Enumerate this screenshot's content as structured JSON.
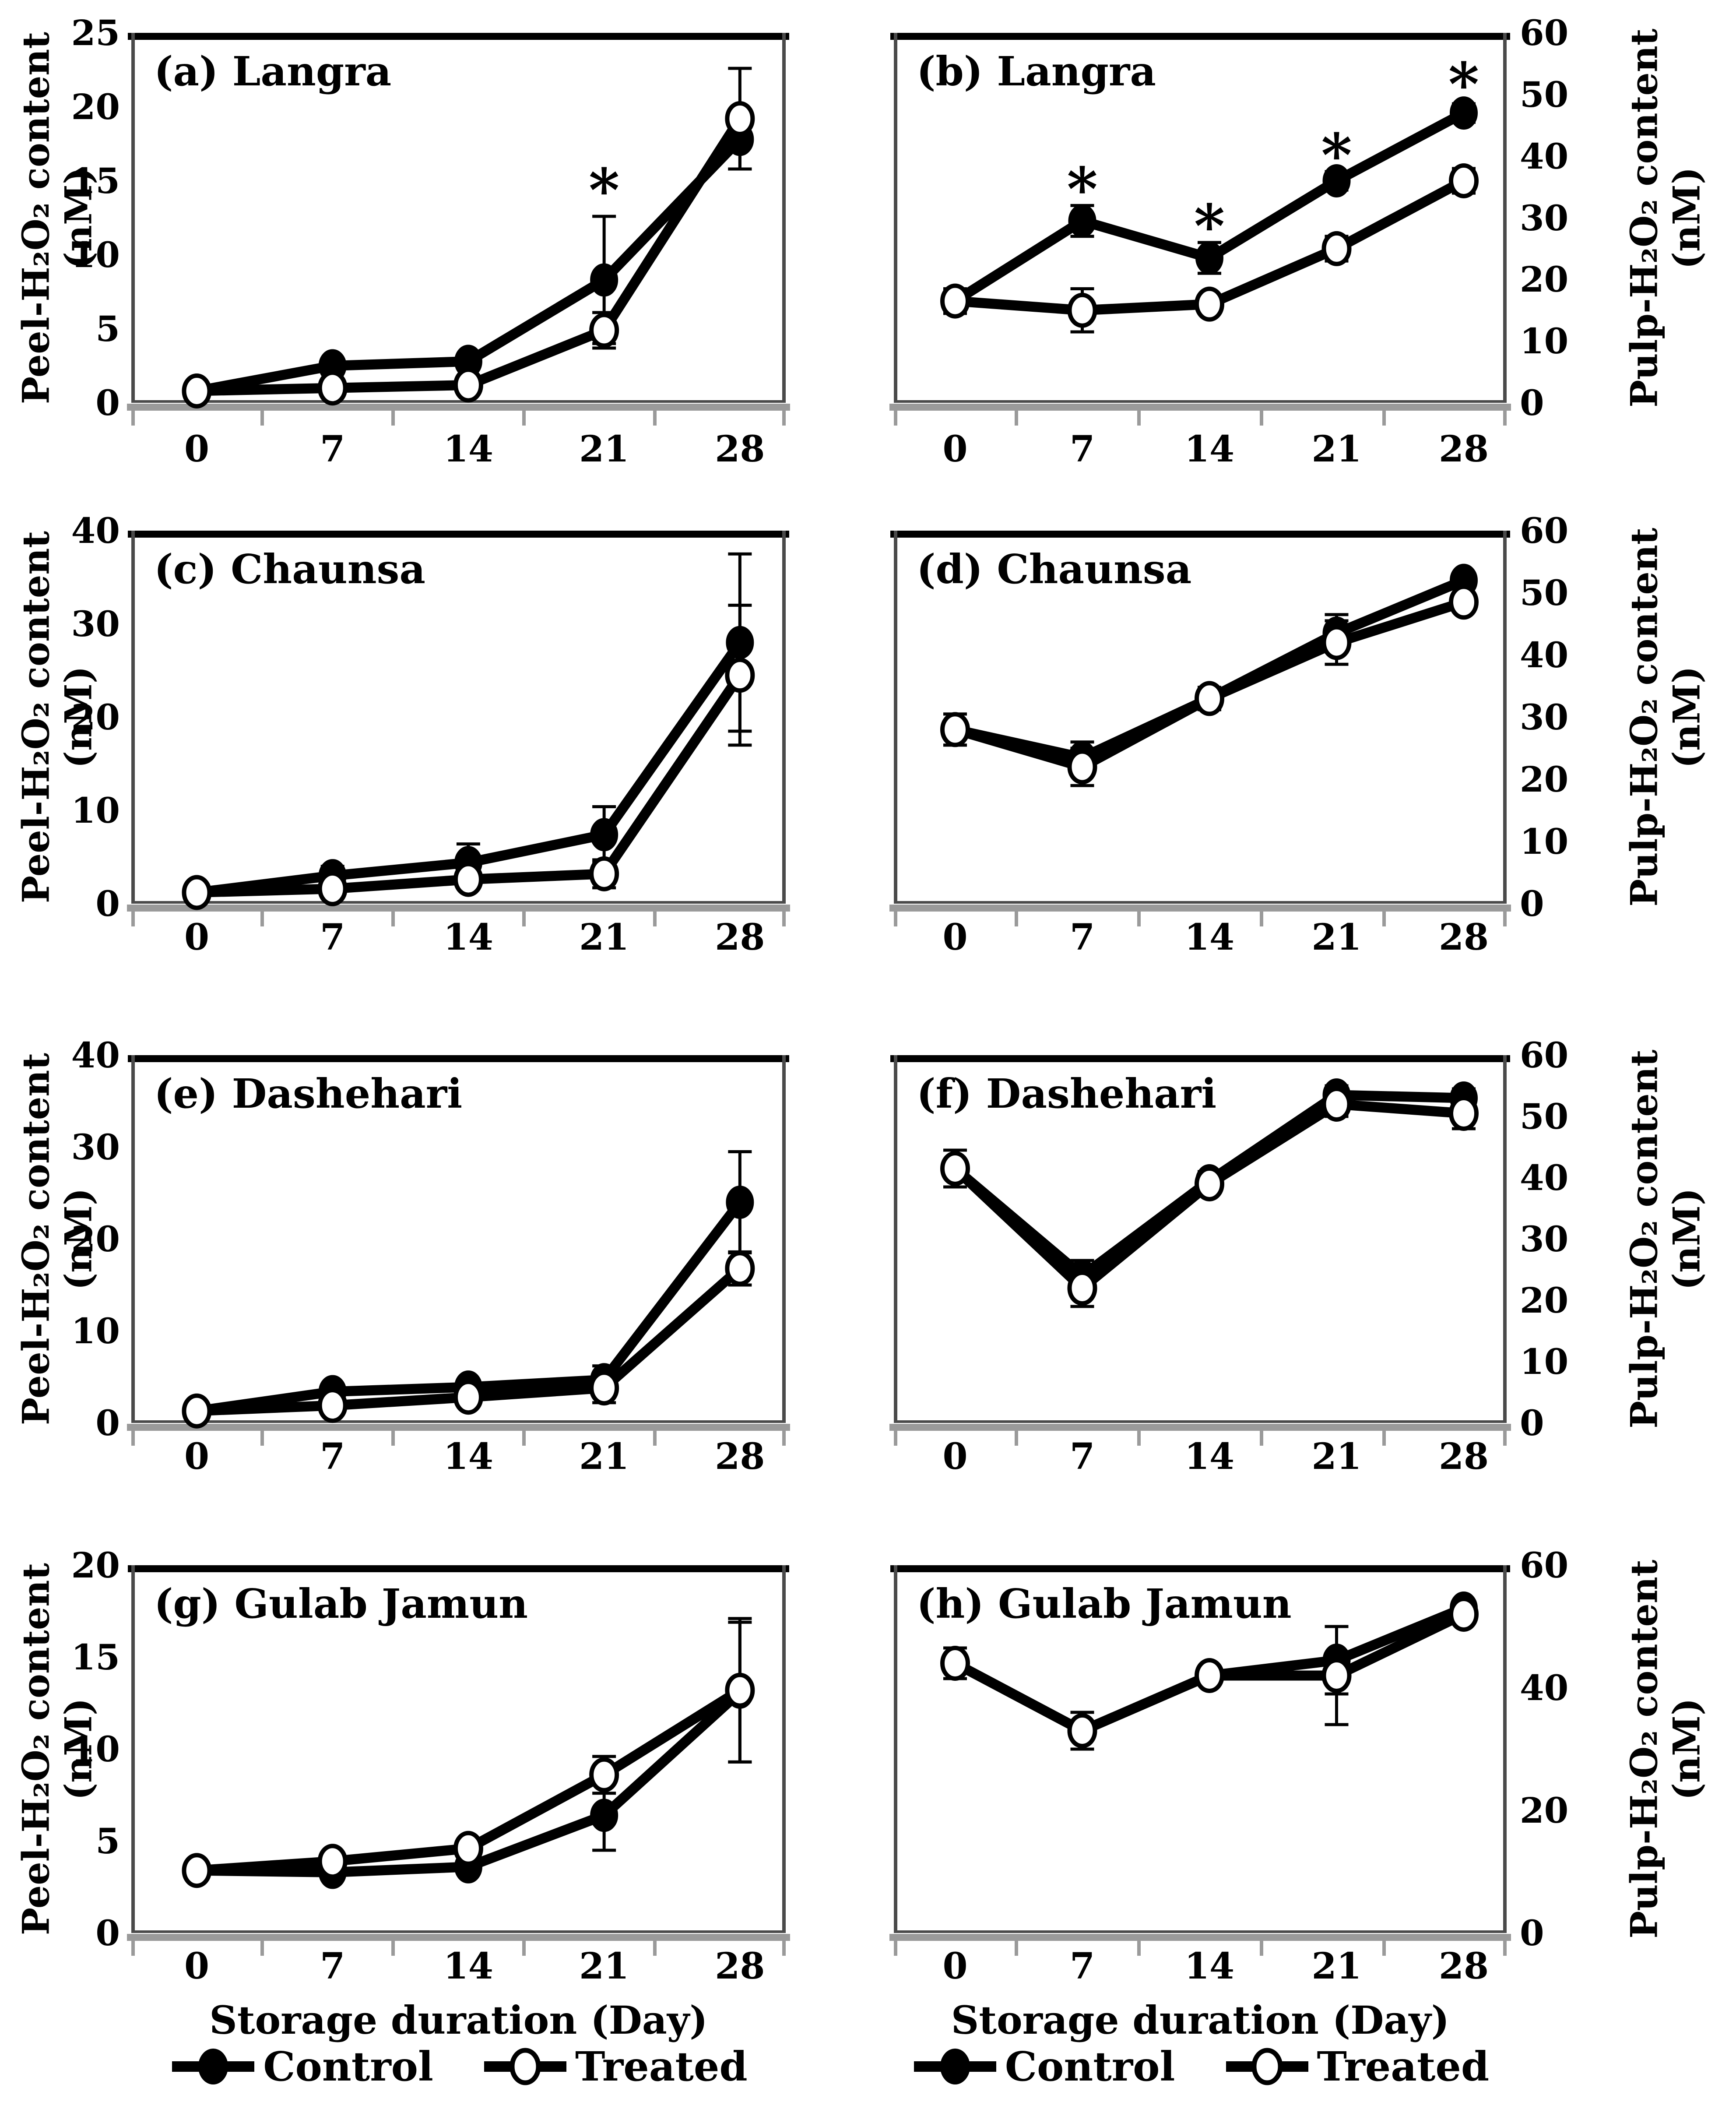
{
  "figure": {
    "x_label": "Storage duration (Day)",
    "x_ticks": [
      "0",
      "7",
      "14",
      "21",
      "28"
    ],
    "x_values": [
      0,
      7,
      14,
      21,
      28
    ],
    "legend": {
      "control": "Control",
      "treated": "Treated"
    },
    "colors": {
      "line": "#000000",
      "control_marker_fill": "#000000",
      "treated_marker_fill": "#ffffff",
      "frame_top": "#000000",
      "frame_side": "#4a4a4a",
      "axis_shadow_gray": "#9a9a9a",
      "background": "#ffffff"
    }
  },
  "chart_data": [
    {
      "id": "a",
      "type": "line",
      "title": "(a) Langra",
      "ylabel_line1": "Peel-H₂O₂ content",
      "ylabel_line2": "(nM)",
      "y_axis_side": "left",
      "ylim": [
        0,
        25
      ],
      "yticks": [
        0,
        5,
        10,
        15,
        20,
        25
      ],
      "x": [
        0,
        7,
        14,
        21,
        28
      ],
      "grid": false,
      "series": [
        {
          "name": "Control",
          "marker": "filled",
          "values": [
            0.8,
            2.5,
            2.8,
            8.3,
            17.8
          ],
          "errors": [
            0.3,
            0.4,
            0.4,
            4.3,
            2.0
          ]
        },
        {
          "name": "Treated",
          "marker": "open",
          "values": [
            0.8,
            1.0,
            1.2,
            4.9,
            19.2
          ],
          "errors": [
            0.3,
            0.3,
            0.3,
            1.2,
            3.4
          ]
        }
      ],
      "significance": [
        {
          "day": 21,
          "y": 14.3
        }
      ]
    },
    {
      "id": "b",
      "type": "line",
      "title": "(b) Langra",
      "ylabel_line1": "Pulp-H₂O₂ content",
      "ylabel_line2": "(nM)",
      "y_axis_side": "right",
      "ylim": [
        0,
        60
      ],
      "yticks": [
        0,
        10,
        20,
        30,
        40,
        50,
        60
      ],
      "x": [
        0,
        7,
        14,
        21,
        28
      ],
      "grid": false,
      "series": [
        {
          "name": "Control",
          "marker": "filled",
          "values": [
            16.5,
            29.5,
            23.5,
            36.0,
            47.0
          ],
          "errors": [
            2.0,
            2.5,
            2.5,
            1.5,
            1.5
          ]
        },
        {
          "name": "Treated",
          "marker": "open",
          "values": [
            16.5,
            15.0,
            16.0,
            25.0,
            36.0
          ],
          "errors": [
            2.0,
            3.5,
            1.5,
            2.0,
            2.0
          ]
        }
      ],
      "significance": [
        {
          "day": 7,
          "y": 34.5
        },
        {
          "day": 14,
          "y": 28.5
        },
        {
          "day": 21,
          "y": 40.0
        },
        {
          "day": 28,
          "y": 51.5
        }
      ]
    },
    {
      "id": "c",
      "type": "line",
      "title": "(c) Chaunsa",
      "ylabel_line1": "Peel-H₂O₂ content",
      "ylabel_line2": "(nM)",
      "y_axis_side": "left",
      "ylim": [
        0,
        40
      ],
      "yticks": [
        0,
        10,
        20,
        30,
        40
      ],
      "x": [
        0,
        7,
        14,
        21,
        28
      ],
      "grid": false,
      "series": [
        {
          "name": "Control",
          "marker": "filled",
          "values": [
            1.2,
            3.0,
            4.4,
            7.4,
            28.0
          ],
          "errors": [
            0.5,
            1.0,
            2.0,
            3.0,
            9.5
          ]
        },
        {
          "name": "Treated",
          "marker": "open",
          "values": [
            1.2,
            1.6,
            2.6,
            3.2,
            24.5
          ],
          "errors": [
            0.5,
            0.5,
            0.8,
            1.5,
            7.5
          ]
        }
      ],
      "significance": []
    },
    {
      "id": "d",
      "type": "line",
      "title": "(d) Chaunsa",
      "ylabel_line1": "Pulp-H₂O₂ content",
      "ylabel_line2": "(nM)",
      "y_axis_side": "right",
      "ylim": [
        0,
        60
      ],
      "yticks": [
        0,
        10,
        20,
        30,
        40,
        50,
        60
      ],
      "x": [
        0,
        7,
        14,
        21,
        28
      ],
      "grid": false,
      "series": [
        {
          "name": "Control",
          "marker": "filled",
          "values": [
            28.0,
            23.5,
            33.0,
            43.5,
            52.0
          ],
          "errors": [
            2.5,
            2.5,
            1.5,
            3.0,
            1.0
          ]
        },
        {
          "name": "Treated",
          "marker": "open",
          "values": [
            28.0,
            22.0,
            33.0,
            42.0,
            48.5
          ],
          "errors": [
            2.5,
            3.0,
            1.8,
            3.5,
            1.5
          ]
        }
      ],
      "significance": []
    },
    {
      "id": "e",
      "type": "line",
      "title": "(e) Dashehari",
      "ylabel_line1": "Peel-H₂O₂ content",
      "ylabel_line2": "(nM)",
      "y_axis_side": "left",
      "ylim": [
        0,
        40
      ],
      "yticks": [
        0,
        10,
        20,
        30,
        40
      ],
      "x": [
        0,
        7,
        14,
        21,
        28
      ],
      "grid": false,
      "series": [
        {
          "name": "Control",
          "marker": "filled",
          "values": [
            1.3,
            3.4,
            3.9,
            4.7,
            24.0
          ],
          "errors": [
            0.4,
            0.5,
            0.6,
            1.5,
            5.5
          ]
        },
        {
          "name": "Treated",
          "marker": "open",
          "values": [
            1.3,
            1.9,
            2.8,
            3.8,
            16.8
          ],
          "errors": [
            0.4,
            0.5,
            0.6,
            1.6,
            1.8
          ]
        }
      ],
      "significance": []
    },
    {
      "id": "f",
      "type": "line",
      "title": "(f) Dashehari",
      "ylabel_line1": "Pulp-H₂O₂ content",
      "ylabel_line2": "(nM)",
      "y_axis_side": "right",
      "ylim": [
        0,
        60
      ],
      "yticks": [
        0,
        10,
        20,
        30,
        40,
        50,
        60
      ],
      "x": [
        0,
        7,
        14,
        21,
        28
      ],
      "grid": false,
      "series": [
        {
          "name": "Control",
          "marker": "filled",
          "values": [
            41.5,
            24.0,
            39.5,
            53.5,
            53.0
          ],
          "errors": [
            3.0,
            2.5,
            1.5,
            1.5,
            1.5
          ]
        },
        {
          "name": "Treated",
          "marker": "open",
          "values": [
            41.5,
            22.0,
            39.0,
            52.0,
            50.5
          ],
          "errors": [
            3.0,
            3.0,
            1.5,
            2.0,
            2.5
          ]
        }
      ],
      "significance": []
    },
    {
      "id": "g",
      "type": "line",
      "title": "(g) Gulab Jamun",
      "ylabel_line1": "Peel-H₂O₂ content",
      "ylabel_line2": "(nM)",
      "y_axis_side": "left",
      "ylim": [
        0,
        20
      ],
      "yticks": [
        0,
        5,
        10,
        15,
        20
      ],
      "x": [
        0,
        7,
        14,
        21,
        28
      ],
      "grid": false,
      "series": [
        {
          "name": "Control",
          "marker": "filled",
          "values": [
            3.4,
            3.3,
            3.6,
            6.4,
            13.1
          ],
          "errors": [
            0.3,
            0.3,
            0.4,
            1.9,
            3.8
          ]
        },
        {
          "name": "Treated",
          "marker": "open",
          "values": [
            3.4,
            3.9,
            4.6,
            8.6,
            13.2
          ],
          "errors": [
            0.3,
            0.3,
            0.5,
            1.0,
            3.9
          ]
        }
      ],
      "significance": []
    },
    {
      "id": "h",
      "type": "line",
      "title": "(h) Gulab Jamun",
      "ylabel_line1": "Pulp-H₂O₂ content",
      "ylabel_line2": "(nM)",
      "y_axis_side": "right",
      "ylim": [
        0,
        60
      ],
      "yticks": [
        0,
        20,
        40,
        60
      ],
      "x": [
        0,
        7,
        14,
        21,
        28
      ],
      "grid": false,
      "series": [
        {
          "name": "Control",
          "marker": "filled",
          "values": [
            44.0,
            33.0,
            42.0,
            44.5,
            53.0
          ],
          "errors": [
            2.5,
            3.0,
            1.5,
            5.5,
            1.0
          ]
        },
        {
          "name": "Treated",
          "marker": "open",
          "values": [
            44.0,
            33.0,
            42.0,
            42.0,
            52.0
          ],
          "errors": [
            2.5,
            3.0,
            1.5,
            8.0,
            1.5
          ]
        }
      ],
      "significance": []
    }
  ]
}
